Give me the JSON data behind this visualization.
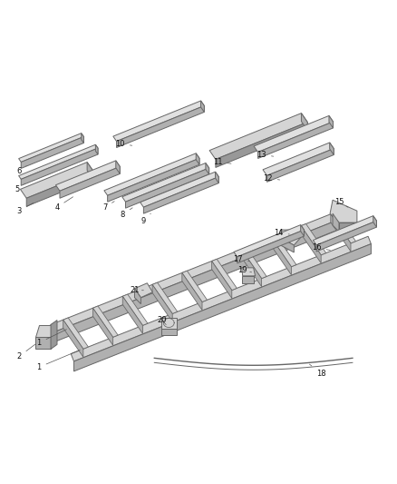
{
  "bg_color": "#ffffff",
  "lc": "#666666",
  "lw": 0.7,
  "figsize": [
    4.38,
    5.33
  ],
  "dpi": 100,
  "top_face": "#d4d4d4",
  "side_face": "#b0b0b0",
  "dark_face": "#989898",
  "highlight": "#e0e0e0"
}
